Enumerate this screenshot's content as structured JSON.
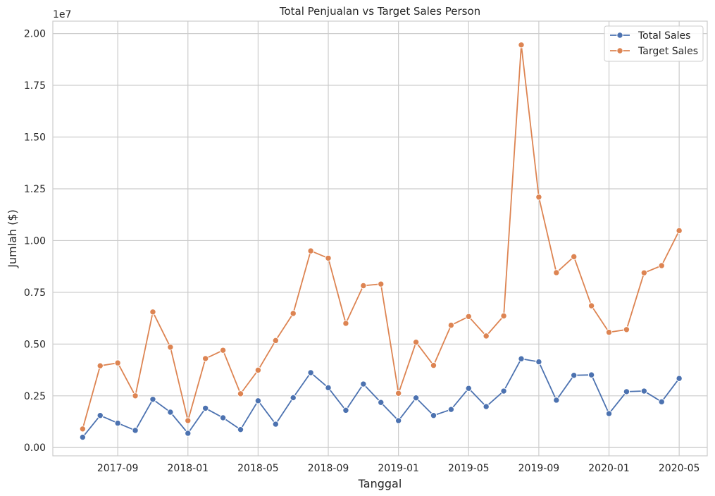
{
  "chart_data": {
    "type": "line",
    "title": "Total Penjualan vs Target Sales Person",
    "xlabel": "Tanggal",
    "ylabel": "Jumlah ($)",
    "y_offset_text": "1e7",
    "ylim": [
      -0.04,
      2.06
    ],
    "y_ticks": [
      0.0,
      0.25,
      0.5,
      0.75,
      1.0,
      1.25,
      1.5,
      1.75,
      2.0
    ],
    "y_tick_labels": [
      "0.00",
      "0.25",
      "0.50",
      "0.75",
      "1.00",
      "1.25",
      "1.50",
      "1.75",
      "2.00"
    ],
    "x_tick_labels": [
      "2017-09",
      "2018-01",
      "2018-05",
      "2018-09",
      "2019-01",
      "2019-05",
      "2019-09",
      "2020-01",
      "2020-05"
    ],
    "x_tick_positions": [
      2,
      6,
      10,
      14,
      18,
      22,
      26,
      30,
      34
    ],
    "xlim": [
      -1.7,
      35.6
    ],
    "x": [
      "2017-07",
      "2017-08",
      "2017-09",
      "2017-10",
      "2017-11",
      "2017-12",
      "2018-01",
      "2018-02",
      "2018-03",
      "2018-04",
      "2018-05",
      "2018-06",
      "2018-07",
      "2018-08",
      "2018-09",
      "2018-10",
      "2018-11",
      "2018-12",
      "2019-01",
      "2019-02",
      "2019-03",
      "2019-04",
      "2019-05",
      "2019-06",
      "2019-07",
      "2019-08",
      "2019-09",
      "2019-10",
      "2019-11",
      "2019-12",
      "2020-01",
      "2020-02",
      "2020-03",
      "2020-04",
      "2020-05"
    ],
    "grid": true,
    "legend_position": "top-right",
    "series": [
      {
        "name": "Total Sales",
        "color": "#4c72b0",
        "values": [
          0.05,
          0.155,
          0.118,
          0.083,
          0.233,
          0.171,
          0.069,
          0.19,
          0.144,
          0.087,
          0.226,
          0.113,
          0.241,
          0.362,
          0.289,
          0.18,
          0.307,
          0.218,
          0.13,
          0.24,
          0.155,
          0.184,
          0.286,
          0.198,
          0.273,
          0.429,
          0.414,
          0.229,
          0.349,
          0.351,
          0.164,
          0.27,
          0.273,
          0.221,
          0.334
        ]
      },
      {
        "name": "Target Sales",
        "color": "#dd8452",
        "values": [
          0.09,
          0.395,
          0.409,
          0.25,
          0.655,
          0.485,
          0.13,
          0.43,
          0.47,
          0.26,
          0.374,
          0.517,
          0.648,
          0.95,
          0.915,
          0.6,
          0.782,
          0.79,
          0.262,
          0.509,
          0.397,
          0.591,
          0.633,
          0.539,
          0.636,
          1.945,
          1.21,
          0.845,
          0.922,
          0.685,
          0.557,
          0.57,
          0.844,
          0.879,
          1.048
        ]
      }
    ]
  }
}
